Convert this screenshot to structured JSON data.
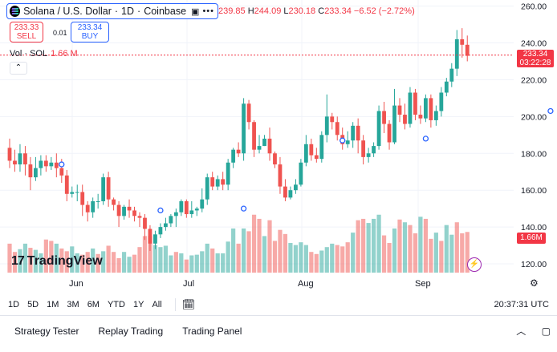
{
  "symbol": {
    "title": "Solana / U.S. Dollar",
    "interval": "1D",
    "exchange": "Coinbase",
    "icon": "window-icon",
    "more": "more-icon"
  },
  "ohlc": {
    "open": "239.85",
    "high_label": "H",
    "high": "244.09",
    "low_label": "L",
    "low": "230.18",
    "close_label": "C",
    "close": "233.34",
    "change": "−6.52 (−2.72%)"
  },
  "trade": {
    "sell_price": "233.33",
    "sell_label": "SELL",
    "spread": "0.01",
    "buy_price": "233.34",
    "buy_label": "BUY"
  },
  "volume_legend": {
    "label": "Vol · SOL",
    "value": "1.66 M"
  },
  "watermark": {
    "logo": "17",
    "text": "TradingView"
  },
  "price_axis": {
    "ticks": [
      "260.00",
      "240.00",
      "220.00",
      "200.00",
      "180.00",
      "160.00",
      "140.00",
      "120.00"
    ],
    "last_price": "233.34",
    "countdown": "03:22:28",
    "volume_tag": "1.66M"
  },
  "time_axis": {
    "labels": [
      "Jun",
      "Jul",
      "Aug",
      "Sep"
    ]
  },
  "toolbar": {
    "ranges": [
      "1D",
      "5D",
      "1M",
      "3M",
      "6M",
      "YTD",
      "1Y",
      "All"
    ],
    "clock": "20:37:31 UTC"
  },
  "panels": {
    "tabs": [
      "Strategy Tester",
      "Replay Trading",
      "Trading Panel"
    ]
  },
  "colors": {
    "up": "#26a69a",
    "down": "#ef5350",
    "accent": "#2962ff"
  },
  "chart_data": {
    "type": "candlestick",
    "price_range": [
      110,
      262
    ],
    "candles": [
      [
        183,
        176,
        188,
        172
      ],
      [
        176,
        174,
        182,
        170
      ],
      [
        174,
        180,
        185,
        170
      ],
      [
        180,
        174,
        184,
        168
      ],
      [
        174,
        167,
        178,
        160
      ],
      [
        167,
        172,
        178,
        165
      ],
      [
        172,
        176,
        179,
        168
      ],
      [
        176,
        173,
        179,
        170
      ],
      [
        173,
        175,
        178,
        171
      ],
      [
        175,
        172,
        180,
        167
      ],
      [
        172,
        168,
        177,
        164
      ],
      [
        168,
        158,
        171,
        154
      ],
      [
        158,
        159,
        162,
        156
      ],
      [
        159,
        159,
        163,
        154
      ],
      [
        159,
        152,
        163,
        146
      ],
      [
        152,
        148,
        154,
        143
      ],
      [
        148,
        154,
        156,
        145
      ],
      [
        154,
        154,
        158,
        150
      ],
      [
        154,
        167,
        169,
        152
      ],
      [
        167,
        155,
        170,
        151
      ],
      [
        155,
        152,
        156,
        149
      ],
      [
        152,
        146,
        154,
        140
      ],
      [
        146,
        151,
        152,
        144
      ],
      [
        151,
        149,
        155,
        145
      ],
      [
        149,
        146,
        151,
        143
      ],
      [
        146,
        145,
        148,
        140
      ],
      [
        145,
        139,
        147,
        133
      ],
      [
        139,
        131,
        141,
        127
      ],
      [
        131,
        136,
        138,
        128
      ],
      [
        136,
        140,
        142,
        134
      ],
      [
        140,
        142,
        145,
        138
      ],
      [
        142,
        146,
        147,
        140
      ],
      [
        146,
        148,
        150,
        140
      ],
      [
        148,
        154,
        155,
        146
      ],
      [
        154,
        147,
        155,
        145
      ],
      [
        147,
        149,
        154,
        145
      ],
      [
        149,
        150,
        151,
        146
      ],
      [
        150,
        155,
        161,
        148
      ],
      [
        155,
        167,
        169,
        152
      ],
      [
        167,
        162,
        170,
        160
      ],
      [
        162,
        166,
        168,
        160
      ],
      [
        166,
        163,
        170,
        160
      ],
      [
        163,
        175,
        177,
        160
      ],
      [
        175,
        182,
        183,
        172
      ],
      [
        182,
        180,
        186,
        178
      ],
      [
        180,
        207,
        210,
        176
      ],
      [
        207,
        197,
        209,
        193
      ],
      [
        197,
        182,
        198,
        178
      ],
      [
        182,
        184,
        190,
        180
      ],
      [
        184,
        188,
        190,
        184
      ],
      [
        188,
        180,
        194,
        176
      ],
      [
        180,
        174,
        181,
        172
      ],
      [
        174,
        162,
        178,
        158
      ],
      [
        162,
        156,
        166,
        154
      ],
      [
        156,
        160,
        162,
        155
      ],
      [
        160,
        163,
        166,
        158
      ],
      [
        163,
        175,
        177,
        162
      ],
      [
        175,
        185,
        190,
        173
      ],
      [
        185,
        179,
        188,
        176
      ],
      [
        179,
        177,
        183,
        175
      ],
      [
        177,
        190,
        192,
        175
      ],
      [
        190,
        200,
        212,
        186
      ],
      [
        200,
        197,
        202,
        193
      ],
      [
        197,
        190,
        200,
        187
      ],
      [
        190,
        185,
        194,
        182
      ],
      [
        185,
        187,
        192,
        183
      ],
      [
        187,
        195,
        197,
        183
      ],
      [
        195,
        187,
        199,
        180
      ],
      [
        187,
        178,
        190,
        174
      ],
      [
        178,
        180,
        183,
        175
      ],
      [
        180,
        184,
        186,
        178
      ],
      [
        184,
        203,
        206,
        182
      ],
      [
        203,
        196,
        208,
        191
      ],
      [
        196,
        186,
        198,
        182
      ],
      [
        186,
        206,
        215,
        185
      ],
      [
        206,
        201,
        210,
        197
      ],
      [
        201,
        196,
        207,
        193
      ],
      [
        196,
        213,
        216,
        194
      ],
      [
        213,
        201,
        215,
        198
      ],
      [
        201,
        199,
        206,
        196
      ],
      [
        199,
        210,
        212,
        197
      ],
      [
        210,
        198,
        212,
        194
      ],
      [
        198,
        203,
        206,
        195
      ],
      [
        203,
        213,
        216,
        200
      ],
      [
        213,
        219,
        221,
        211
      ],
      [
        219,
        226,
        229,
        216
      ],
      [
        226,
        242,
        247,
        222
      ],
      [
        242,
        239,
        248,
        232
      ],
      [
        239,
        233,
        244,
        230
      ]
    ],
    "volumes": [
      [
        0.42,
        0
      ],
      [
        0.3,
        0
      ],
      [
        0.34,
        1
      ],
      [
        0.42,
        1
      ],
      [
        0.36,
        0
      ],
      [
        0.33,
        1
      ],
      [
        0.28,
        1
      ],
      [
        0.48,
        0
      ],
      [
        0.46,
        0
      ],
      [
        0.42,
        1
      ],
      [
        0.35,
        0
      ],
      [
        0.31,
        0
      ],
      [
        0.38,
        1
      ],
      [
        0.28,
        1
      ],
      [
        0.26,
        0
      ],
      [
        0.3,
        0
      ],
      [
        0.35,
        1
      ],
      [
        0.27,
        0
      ],
      [
        0.31,
        1
      ],
      [
        0.39,
        0
      ],
      [
        0.3,
        0
      ],
      [
        0.21,
        0
      ],
      [
        0.3,
        1
      ],
      [
        0.23,
        1
      ],
      [
        0.26,
        0
      ],
      [
        0.37,
        0
      ],
      [
        0.53,
        0
      ],
      [
        0.53,
        0
      ],
      [
        0.4,
        1
      ],
      [
        0.37,
        1
      ],
      [
        0.39,
        1
      ],
      [
        0.25,
        1
      ],
      [
        0.3,
        0
      ],
      [
        0.28,
        1
      ],
      [
        0.19,
        0
      ],
      [
        0.25,
        1
      ],
      [
        0.26,
        1
      ],
      [
        0.31,
        1
      ],
      [
        0.42,
        1
      ],
      [
        0.35,
        0
      ],
      [
        0.28,
        1
      ],
      [
        0.28,
        1
      ],
      [
        0.45,
        1
      ],
      [
        0.64,
        1
      ],
      [
        0.42,
        0
      ],
      [
        0.64,
        1
      ],
      [
        0.6,
        0
      ],
      [
        0.84,
        0
      ],
      [
        0.78,
        0
      ],
      [
        0.53,
        1
      ],
      [
        0.76,
        0
      ],
      [
        0.46,
        0
      ],
      [
        0.62,
        0
      ],
      [
        0.56,
        0
      ],
      [
        0.43,
        1
      ],
      [
        0.4,
        1
      ],
      [
        0.44,
        1
      ],
      [
        0.4,
        1
      ],
      [
        0.3,
        0
      ],
      [
        0.27,
        0
      ],
      [
        0.32,
        1
      ],
      [
        0.37,
        1
      ],
      [
        0.42,
        1
      ],
      [
        0.4,
        0
      ],
      [
        0.38,
        0
      ],
      [
        0.44,
        0
      ],
      [
        0.58,
        1
      ],
      [
        0.76,
        0
      ],
      [
        0.78,
        0
      ],
      [
        0.72,
        1
      ],
      [
        0.78,
        1
      ],
      [
        0.84,
        1
      ],
      [
        0.54,
        0
      ],
      [
        0.43,
        0
      ],
      [
        0.64,
        1
      ],
      [
        0.77,
        0
      ],
      [
        0.73,
        1
      ],
      [
        0.69,
        0
      ],
      [
        0.57,
        0
      ],
      [
        0.81,
        1
      ],
      [
        0.78,
        0
      ],
      [
        0.49,
        0
      ],
      [
        0.58,
        1
      ],
      [
        0.46,
        0
      ],
      [
        0.69,
        1
      ],
      [
        0.55,
        1
      ],
      [
        0.73,
        0
      ],
      [
        0.57,
        0
      ],
      [
        0.59,
        0
      ]
    ],
    "volume_max": 1.0,
    "events": [
      {
        "index": 10,
        "price": 174
      },
      {
        "index": 29,
        "price": 149
      },
      {
        "index": 45,
        "price": 150
      },
      {
        "index": 64,
        "price": 187
      },
      {
        "index": 80,
        "price": 188
      },
      {
        "index": 104,
        "price": 203
      }
    ]
  }
}
